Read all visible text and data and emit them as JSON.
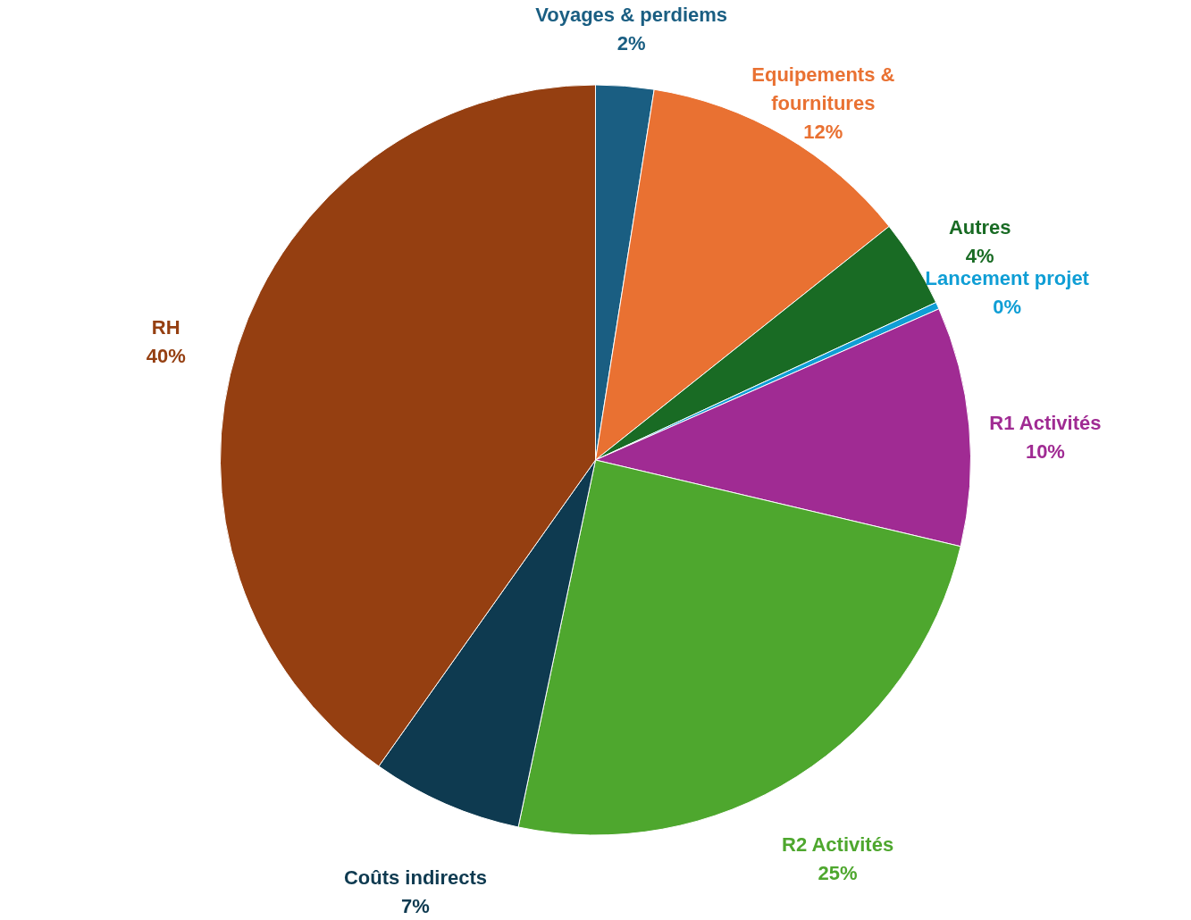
{
  "chart_data": {
    "type": "pie",
    "categories": [
      "Voyages & perdiems",
      "Equipements & fournitures",
      "Autres",
      "Lancement projet",
      "R1 Activités",
      "R2 Activités",
      "Coûts indirects",
      "RH"
    ],
    "values": [
      2.5,
      11.8,
      3.8,
      0.3,
      10.3,
      24.6,
      6.5,
      40.2
    ],
    "value_labels": [
      "2%",
      "12%",
      "4%",
      "0%",
      "10%",
      "25%",
      "7%",
      "40%"
    ],
    "colors": [
      "#1a5e82",
      "#e97132",
      "#196b24",
      "#0f9ed5",
      "#a02b93",
      "#4ea72e",
      "#0e3a50",
      "#953f11"
    ]
  }
}
